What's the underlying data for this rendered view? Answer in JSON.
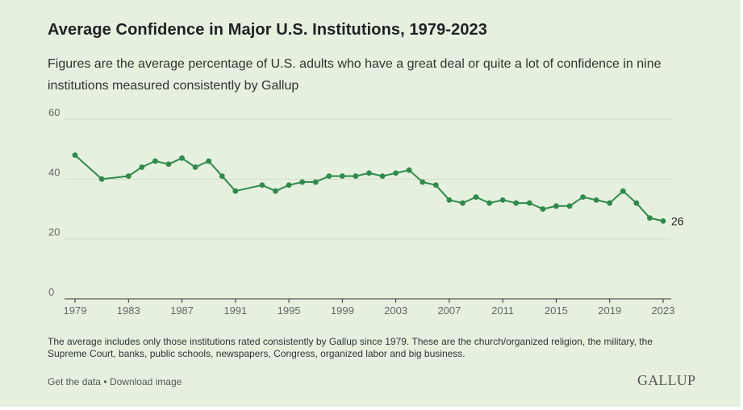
{
  "title": "Average Confidence in Major U.S. Institutions, 1979-2023",
  "subtitle": "Figures are the average percentage of U.S. adults who have a great deal or quite a lot of confidence in nine institutions measured consistently by Gallup",
  "note": "The average includes only those institutions rated consistently by Gallup since 1979. These are the church/organized religion, the military, the Supreme Court, banks, public schools, newspapers, Congress, organized labor and big business.",
  "links": {
    "get_data": "Get the data",
    "separator": "•",
    "download_image": "Download image"
  },
  "logo_text": "GALLUP",
  "colors": {
    "background": "#e6f0df",
    "line": "#2e8b4a",
    "grid": "#cfdcc8",
    "text": "#202124"
  },
  "chart_data": {
    "type": "line",
    "xlabel": "",
    "ylabel": "",
    "xlim": [
      1979,
      2023
    ],
    "ylim": [
      0,
      60
    ],
    "x_ticks": [
      "1979",
      "1983",
      "1987",
      "1991",
      "1995",
      "1999",
      "2003",
      "2007",
      "2011",
      "2015",
      "2019",
      "2023"
    ],
    "y_ticks": [
      "0",
      "20",
      "40",
      "60"
    ],
    "grid": true,
    "end_label": "26",
    "series": [
      {
        "color": "#2e8b4a",
        "points": [
          {
            "x": 1979,
            "y": 48
          },
          {
            "x": 1981,
            "y": 40
          },
          {
            "x": 1983,
            "y": 41
          },
          {
            "x": 1984,
            "y": 44
          },
          {
            "x": 1985,
            "y": 46
          },
          {
            "x": 1986,
            "y": 45
          },
          {
            "x": 1987,
            "y": 47
          },
          {
            "x": 1988,
            "y": 44
          },
          {
            "x": 1989,
            "y": 46
          },
          {
            "x": 1990,
            "y": 41
          },
          {
            "x": 1991,
            "y": 36
          },
          {
            "x": 1993,
            "y": 38
          },
          {
            "x": 1994,
            "y": 36
          },
          {
            "x": 1995,
            "y": 38
          },
          {
            "x": 1996,
            "y": 39
          },
          {
            "x": 1997,
            "y": 39
          },
          {
            "x": 1998,
            "y": 41
          },
          {
            "x": 1999,
            "y": 41
          },
          {
            "x": 2000,
            "y": 41
          },
          {
            "x": 2001,
            "y": 42
          },
          {
            "x": 2002,
            "y": 41
          },
          {
            "x": 2003,
            "y": 42
          },
          {
            "x": 2004,
            "y": 43
          },
          {
            "x": 2005,
            "y": 39
          },
          {
            "x": 2006,
            "y": 38
          },
          {
            "x": 2007,
            "y": 33
          },
          {
            "x": 2008,
            "y": 32
          },
          {
            "x": 2009,
            "y": 34
          },
          {
            "x": 2010,
            "y": 32
          },
          {
            "x": 2011,
            "y": 33
          },
          {
            "x": 2012,
            "y": 32
          },
          {
            "x": 2013,
            "y": 32
          },
          {
            "x": 2014,
            "y": 30
          },
          {
            "x": 2015,
            "y": 31
          },
          {
            "x": 2016,
            "y": 31
          },
          {
            "x": 2017,
            "y": 34
          },
          {
            "x": 2018,
            "y": 33
          },
          {
            "x": 2019,
            "y": 32
          },
          {
            "x": 2020,
            "y": 36
          },
          {
            "x": 2021,
            "y": 32
          },
          {
            "x": 2022,
            "y": 27
          },
          {
            "x": 2023,
            "y": 26
          }
        ]
      }
    ]
  }
}
